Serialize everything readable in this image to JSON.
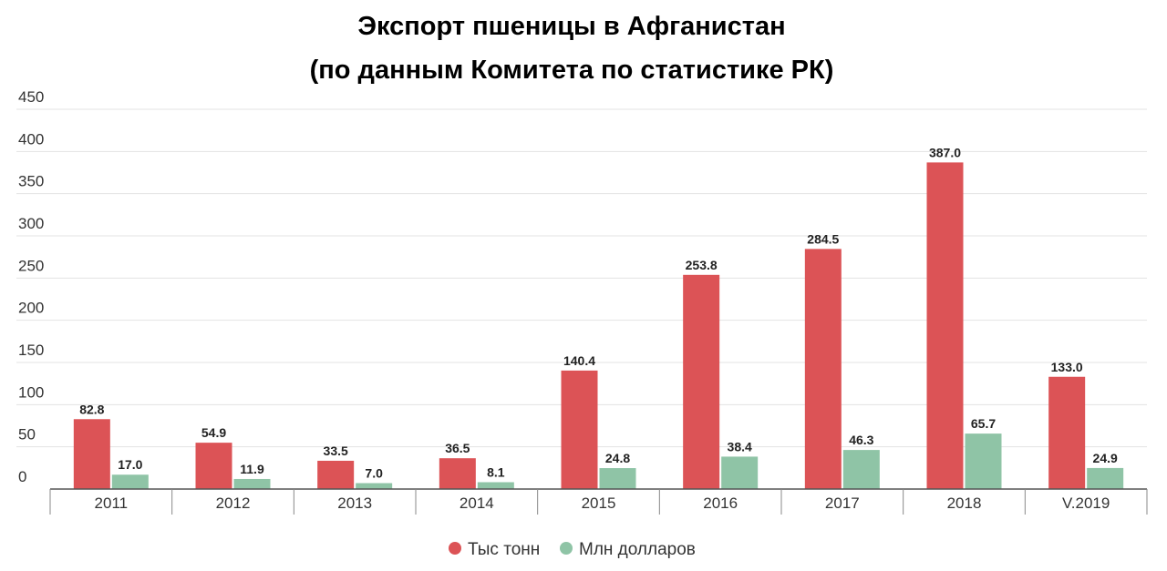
{
  "chart_data": {
    "type": "bar",
    "title_lines": [
      "Экспорт пшеницы в Афганистан",
      "(по данным Комитета по статистике РК)"
    ],
    "categories": [
      "2011",
      "2012",
      "2013",
      "2014",
      "2015",
      "2016",
      "2017",
      "2018",
      "V.2019"
    ],
    "series": [
      {
        "name": "Тыс тонн",
        "color": "#dc5356",
        "values": [
          82.8,
          54.9,
          33.5,
          36.5,
          140.4,
          253.8,
          284.5,
          387.0,
          133.0
        ]
      },
      {
        "name": "Млн долларов",
        "color": "#8fc4a6",
        "values": [
          17.0,
          11.9,
          7.0,
          8.1,
          24.8,
          38.4,
          46.3,
          65.7,
          24.9
        ]
      }
    ],
    "yticks": [
      0,
      50,
      100,
      150,
      200,
      250,
      300,
      350,
      400,
      450
    ],
    "ylim": [
      0,
      450
    ],
    "grid": true,
    "legend_position": "bottom-center"
  }
}
